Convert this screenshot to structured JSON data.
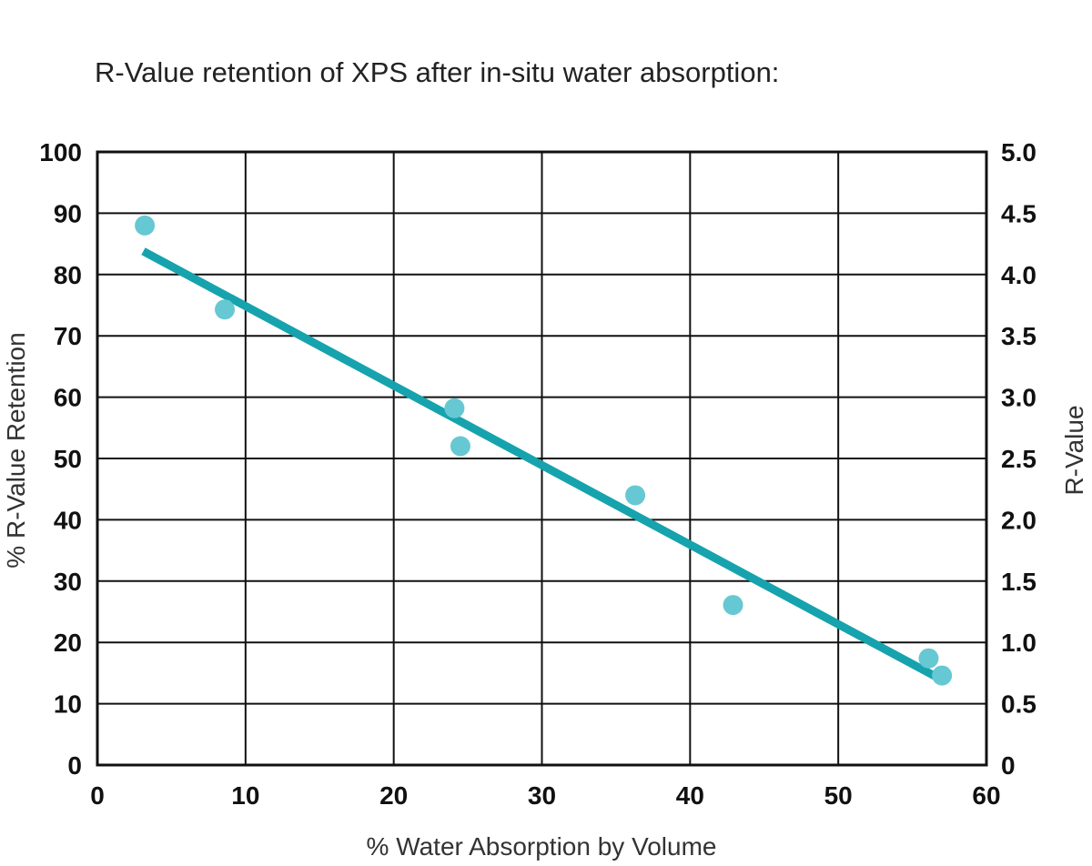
{
  "chart_data": {
    "type": "scatter",
    "title": "R-Value retention of XPS after in-situ water absorption:",
    "xlabel": "% Water Absorption by Volume",
    "ylabel": "% R-Value Retention",
    "y2label": "R-Value",
    "xlim": [
      0,
      60
    ],
    "ylim": [
      0,
      100
    ],
    "y2lim": [
      0,
      5.0
    ],
    "x_ticks": [
      "0",
      "10",
      "20",
      "30",
      "40",
      "50",
      "60"
    ],
    "y_ticks": [
      "0",
      "10",
      "20",
      "30",
      "40",
      "50",
      "60",
      "70",
      "80",
      "90",
      "100"
    ],
    "y2_ticks": [
      "0",
      "0.5",
      "1.0",
      "1.5",
      "2.0",
      "2.5",
      "3.0",
      "3.5",
      "4.0",
      "4.5",
      "5.0"
    ],
    "grid": true,
    "series": [
      {
        "type": "scatter",
        "color": "#66c8d3",
        "points": [
          {
            "x": 3.2,
            "y": 88
          },
          {
            "x": 8.6,
            "y": 74.3
          },
          {
            "x": 24.1,
            "y": 58.2
          },
          {
            "x": 24.5,
            "y": 52
          },
          {
            "x": 36.3,
            "y": 44
          },
          {
            "x": 42.9,
            "y": 26.1
          },
          {
            "x": 56.1,
            "y": 17.4
          },
          {
            "x": 57.0,
            "y": 14.6
          }
        ]
      },
      {
        "type": "line",
        "color": "#16a3ae",
        "points": [
          {
            "x": 3.1,
            "y": 83.8
          },
          {
            "x": 56.6,
            "y": 14.4
          }
        ]
      }
    ]
  }
}
